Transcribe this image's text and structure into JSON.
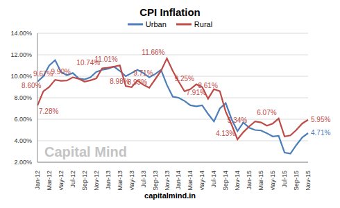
{
  "chart_data": {
    "type": "line",
    "title": "CPI Inflation",
    "watermark": "Capital Mind",
    "footer": "capitalmind.in",
    "categories": [
      "Jan-12",
      null,
      "Mar-12",
      null,
      "May-12",
      null,
      "Jul-12",
      null,
      "Sep-12",
      null,
      "Nov-12",
      null,
      "Jan-13",
      null,
      "Mar-13",
      null,
      "May-13",
      null,
      "Jul-13",
      null,
      "Sep-13",
      null,
      "Nov-13",
      null,
      "Jan-14",
      null,
      "Mar-14",
      null,
      "May-14",
      null,
      "Jul-14",
      null,
      "Sep-14",
      null,
      "Nov-14",
      null,
      "Jan-15",
      null,
      "Mar-15",
      null,
      "May-15",
      null,
      "Jul-15",
      null,
      "Sep-15",
      null,
      "Nov-15"
    ],
    "series": [
      {
        "name": "Urban",
        "color": "#4a7ebb",
        "values": [
          9.5,
          10.0,
          11.0,
          11.5,
          10.4,
          10.1,
          10.3,
          9.8,
          9.7,
          9.9,
          10.4,
          10.6,
          10.7,
          10.9,
          10.5,
          10.0,
          10.3,
          10.6,
          10.3,
          9.9,
          10.2,
          10.6,
          9.2,
          8.1,
          8.0,
          7.7,
          7.3,
          7.2,
          7.3,
          6.5,
          5.8,
          7.0,
          7.5,
          6.0,
          4.9,
          5.7,
          5.2,
          5.0,
          4.95,
          4.7,
          4.4,
          4.45,
          2.9,
          2.8,
          3.6,
          4.3,
          4.71
        ],
        "value_labels": [
          null,
          null,
          null,
          null,
          null,
          null,
          null,
          null,
          null,
          null,
          null,
          null,
          null,
          null,
          null,
          null,
          null,
          null,
          null,
          null,
          null,
          null,
          null,
          null,
          null,
          null,
          null,
          null,
          null,
          null,
          null,
          null,
          null,
          null,
          null,
          null,
          null,
          null,
          null,
          null,
          null,
          null,
          null,
          null,
          null,
          null,
          "4.71%"
        ]
      },
      {
        "name": "Rural",
        "color": "#be4b48",
        "values": [
          7.28,
          8.6,
          9.0,
          9.67,
          9.57,
          9.6,
          9.9,
          9.77,
          9.5,
          9.62,
          9.8,
          10.74,
          10.8,
          10.9,
          11.01,
          9.1,
          8.98,
          9.6,
          9.2,
          8.93,
          9.71,
          10.5,
          11.66,
          10.5,
          9.5,
          8.6,
          8.8,
          9.25,
          9.0,
          7.91,
          8.8,
          8.61,
          6.7,
          5.5,
          4.13,
          4.8,
          5.34,
          5.8,
          5.7,
          5.4,
          5.6,
          6.07,
          4.4,
          4.5,
          5.0,
          5.6,
          5.95
        ],
        "value_labels": [
          "7.28%",
          "8.60%",
          null,
          "9.67%",
          null,
          null,
          "9.90%",
          null,
          null,
          null,
          null,
          "10.74%",
          null,
          null,
          "11.01%",
          null,
          "8.98%",
          null,
          null,
          "8.93%",
          "9.71%",
          null,
          "11.66%",
          null,
          null,
          null,
          null,
          "9.25%",
          null,
          "7.91%",
          null,
          "8.61%",
          null,
          null,
          "4.13%",
          null,
          "5.34%",
          null,
          null,
          null,
          null,
          "6.07%",
          null,
          null,
          null,
          null,
          "5.95%"
        ]
      }
    ],
    "ylim": [
      2,
      14
    ],
    "yticks": [
      {
        "value": 2,
        "label": "2.00%"
      },
      {
        "value": 4,
        "label": "4.00%"
      },
      {
        "value": 6,
        "label": "6.00%"
      },
      {
        "value": 8,
        "label": "8.00%"
      },
      {
        "value": 10,
        "label": "10.00%"
      },
      {
        "value": 12,
        "label": "12.00%"
      },
      {
        "value": 14,
        "label": "14.00%"
      }
    ],
    "grid": true,
    "legend": "top",
    "data_labels": true
  }
}
